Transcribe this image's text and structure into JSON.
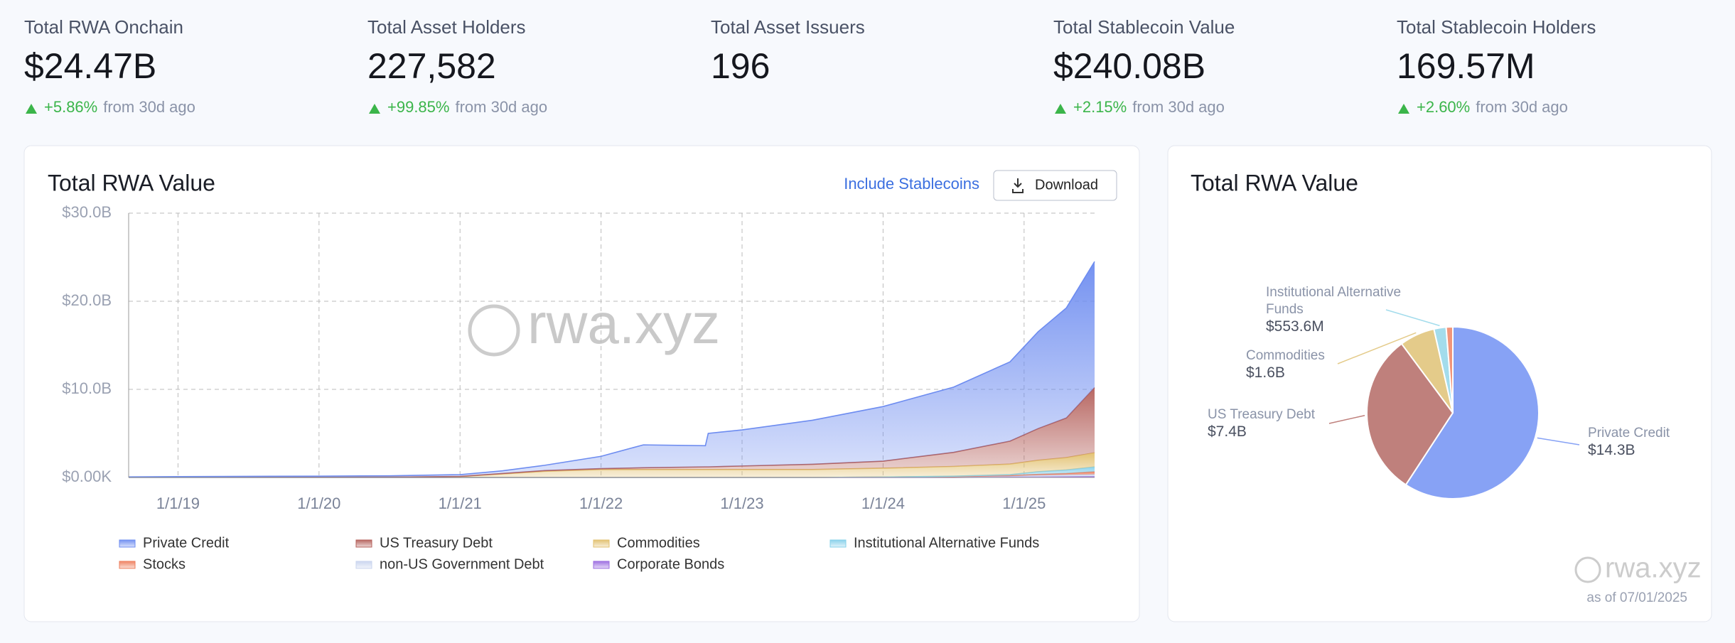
{
  "stats": [
    {
      "label": "Total RWA Onchain",
      "value": "$24.47B",
      "change": "+5.86%",
      "note": "from 30d ago"
    },
    {
      "label": "Total Asset Holders",
      "value": "227,582",
      "change": "+99.85%",
      "note": "from 30d ago"
    },
    {
      "label": "Total Asset Issuers",
      "value": "196"
    },
    {
      "label": "Total Stablecoin Value",
      "value": "$240.08B",
      "change": "+2.15%",
      "note": "from 30d ago"
    },
    {
      "label": "Total Stablecoin Holders",
      "value": "169.57M",
      "change": "+2.60%",
      "note": "from 30d ago"
    }
  ],
  "controls": {
    "toggle": "Include Stablecoins",
    "download": "Download"
  },
  "watermark": "rwa.xyz",
  "as_of": "as of 07/01/2025",
  "chart_data": [
    {
      "type": "stacked-area",
      "title": "Total RWA Value",
      "x": [
        2018.65,
        2019,
        2019.5,
        2020,
        2020.5,
        2021,
        2021.3,
        2021.6,
        2022,
        2022.3,
        2022.74,
        2022.76,
        2023,
        2023.5,
        2024,
        2024.5,
        2024.9,
        2025.1,
        2025.3,
        2025.5
      ],
      "xlim": [
        2018.65,
        2025.5
      ],
      "xticks": [
        {
          "value": 2019,
          "label": "1/1/19"
        },
        {
          "value": 2020,
          "label": "1/1/20"
        },
        {
          "value": 2021,
          "label": "1/1/21"
        },
        {
          "value": 2022,
          "label": "1/1/22"
        },
        {
          "value": 2023,
          "label": "1/1/23"
        },
        {
          "value": 2024,
          "label": "1/1/24"
        },
        {
          "value": 2025,
          "label": "1/1/25"
        }
      ],
      "ylim": [
        0,
        30
      ],
      "yticks": [
        {
          "value": 0,
          "label": "$0.00K"
        },
        {
          "value": 10,
          "label": "$10.0B"
        },
        {
          "value": 20,
          "label": "$20.0B"
        },
        {
          "value": 30,
          "label": "$30.0B"
        }
      ],
      "grid": true,
      "series": [
        {
          "name": "Private Credit",
          "color": "#6d8cf0",
          "values": [
            0.05,
            0.08,
            0.1,
            0.12,
            0.15,
            0.2,
            0.3,
            0.6,
            1.4,
            2.6,
            2.4,
            3.8,
            4.1,
            5.0,
            6.2,
            7.4,
            9.0,
            11.0,
            12.5,
            14.3
          ]
        },
        {
          "name": "US Treasury Debt",
          "color": "#b4605b",
          "values": [
            0,
            0,
            0,
            0,
            0,
            0.02,
            0.05,
            0.08,
            0.1,
            0.2,
            0.3,
            0.3,
            0.4,
            0.6,
            0.8,
            1.6,
            2.6,
            3.6,
            4.5,
            7.4
          ]
        },
        {
          "name": "Commodities",
          "color": "#e2c06e",
          "values": [
            0.02,
            0.02,
            0.03,
            0.03,
            0.04,
            0.1,
            0.4,
            0.7,
            0.9,
            0.9,
            0.9,
            0.9,
            0.9,
            0.9,
            1.0,
            1.1,
            1.2,
            1.3,
            1.4,
            1.6
          ]
        },
        {
          "name": "Institutional Alternative Funds",
          "color": "#86d0ea",
          "values": [
            0,
            0,
            0,
            0,
            0,
            0,
            0,
            0,
            0,
            0,
            0,
            0,
            0,
            0,
            0,
            0.05,
            0.1,
            0.3,
            0.4,
            0.55
          ]
        },
        {
          "name": "Stocks",
          "color": "#ee7f5e",
          "values": [
            0,
            0,
            0,
            0,
            0,
            0,
            0,
            0,
            0,
            0,
            0,
            0,
            0,
            0,
            0,
            0,
            0.02,
            0.1,
            0.15,
            0.3
          ]
        },
        {
          "name": "non-US Government Debt",
          "color": "#c9d4ee",
          "values": [
            0,
            0,
            0,
            0,
            0,
            0,
            0,
            0,
            0,
            0,
            0,
            0,
            0,
            0,
            0.05,
            0.1,
            0.15,
            0.2,
            0.22,
            0.25
          ]
        },
        {
          "name": "Corporate Bonds",
          "color": "#9b6be0",
          "values": [
            0,
            0,
            0,
            0,
            0,
            0,
            0,
            0,
            0,
            0,
            0,
            0,
            0,
            0,
            0,
            0,
            0.05,
            0.05,
            0.08,
            0.1
          ]
        }
      ]
    },
    {
      "type": "pie",
      "title": "Total RWA Value",
      "categories": [
        "Private Credit",
        "US Treasury Debt",
        "Commodities",
        "Institutional Alternative Funds",
        null
      ],
      "values": [
        14.3,
        7.4,
        1.6,
        0.5536,
        0.3
      ],
      "value_labels": [
        "$14.3B",
        "$7.4B",
        "$1.6B",
        "$553.6M",
        null
      ],
      "colors": [
        "#87a2f5",
        "#bf807c",
        "#e4cb8a",
        "#a3dcec",
        "#f1957a"
      ]
    }
  ]
}
